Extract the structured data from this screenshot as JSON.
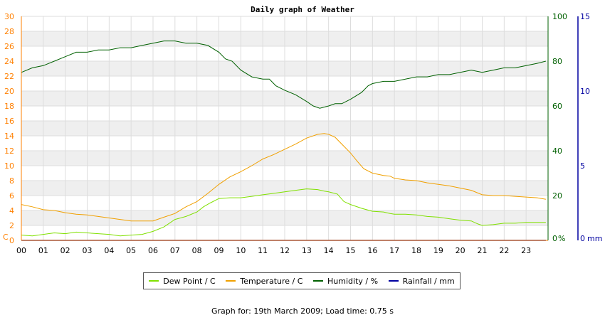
{
  "colors": {
    "dew_point": "#80e000",
    "temperature": "#f0a000",
    "humidity": "#006000",
    "rainfall": "#0000a0",
    "left_axis": "#ff8000",
    "humidity_axis": "#006000",
    "rainfall_axis": "#0000a0"
  },
  "chart_data": {
    "type": "line",
    "title": "Daily graph of Weather",
    "x": {
      "ticks": [
        "00",
        "01",
        "02",
        "03",
        "04",
        "05",
        "06",
        "07",
        "08",
        "09",
        "10",
        "11",
        "12",
        "13",
        "14",
        "15",
        "16",
        "17",
        "18",
        "19",
        "20",
        "21",
        "22",
        "23"
      ],
      "range": [
        0,
        24
      ]
    },
    "y_left": {
      "unit_label": "C",
      "range": [
        0,
        30
      ],
      "ticks": [
        0,
        2,
        4,
        6,
        8,
        10,
        12,
        14,
        16,
        18,
        20,
        22,
        24,
        26,
        28,
        30
      ]
    },
    "y_humidity": {
      "unit_label": "%",
      "range": [
        0,
        100
      ],
      "ticks": [
        0,
        20,
        40,
        60,
        80,
        100
      ]
    },
    "y_rainfall": {
      "unit_label": "mm",
      "range": [
        0,
        15
      ],
      "ticks": [
        0,
        5,
        10,
        15
      ]
    },
    "grid": true,
    "series": [
      {
        "name": "Dew Point / C",
        "axis": "left",
        "points": [
          [
            0,
            0.7
          ],
          [
            0.5,
            0.6
          ],
          [
            1,
            0.8
          ],
          [
            1.5,
            1.0
          ],
          [
            2,
            0.9
          ],
          [
            2.5,
            1.1
          ],
          [
            3,
            1.0
          ],
          [
            3.5,
            0.9
          ],
          [
            4,
            0.8
          ],
          [
            4.5,
            0.6
          ],
          [
            5,
            0.7
          ],
          [
            5.5,
            0.8
          ],
          [
            6,
            1.2
          ],
          [
            6.5,
            1.8
          ],
          [
            7,
            2.8
          ],
          [
            7.5,
            3.2
          ],
          [
            8,
            3.8
          ],
          [
            8.3,
            4.5
          ],
          [
            8.6,
            5.0
          ],
          [
            9,
            5.6
          ],
          [
            9.5,
            5.7
          ],
          [
            10,
            5.7
          ],
          [
            10.5,
            5.9
          ],
          [
            11,
            6.1
          ],
          [
            11.5,
            6.3
          ],
          [
            12,
            6.5
          ],
          [
            12.5,
            6.7
          ],
          [
            13,
            6.9
          ],
          [
            13.5,
            6.8
          ],
          [
            13.8,
            6.6
          ],
          [
            14,
            6.5
          ],
          [
            14.4,
            6.2
          ],
          [
            14.7,
            5.2
          ],
          [
            15,
            4.8
          ],
          [
            15.5,
            4.3
          ],
          [
            16,
            3.9
          ],
          [
            16.5,
            3.8
          ],
          [
            16.8,
            3.6
          ],
          [
            17,
            3.5
          ],
          [
            17.5,
            3.5
          ],
          [
            18,
            3.4
          ],
          [
            18.5,
            3.2
          ],
          [
            19,
            3.1
          ],
          [
            19.5,
            2.9
          ],
          [
            20,
            2.7
          ],
          [
            20.5,
            2.6
          ],
          [
            20.8,
            2.2
          ],
          [
            21,
            2.0
          ],
          [
            21.5,
            2.1
          ],
          [
            22,
            2.3
          ],
          [
            22.5,
            2.3
          ],
          [
            23,
            2.4
          ],
          [
            23.9,
            2.4
          ]
        ]
      },
      {
        "name": "Temperature / C",
        "axis": "left",
        "points": [
          [
            0,
            4.8
          ],
          [
            0.5,
            4.5
          ],
          [
            1,
            4.1
          ],
          [
            1.5,
            4.0
          ],
          [
            2,
            3.7
          ],
          [
            2.5,
            3.5
          ],
          [
            3,
            3.4
          ],
          [
            3.5,
            3.2
          ],
          [
            4,
            3.0
          ],
          [
            4.5,
            2.8
          ],
          [
            5,
            2.6
          ],
          [
            5.5,
            2.6
          ],
          [
            6,
            2.6
          ],
          [
            6.5,
            3.1
          ],
          [
            7,
            3.6
          ],
          [
            7.5,
            4.5
          ],
          [
            8,
            5.2
          ],
          [
            8.5,
            6.3
          ],
          [
            9,
            7.5
          ],
          [
            9.5,
            8.5
          ],
          [
            10,
            9.2
          ],
          [
            10.5,
            10.0
          ],
          [
            11,
            10.9
          ],
          [
            11.5,
            11.5
          ],
          [
            12,
            12.2
          ],
          [
            12.5,
            12.9
          ],
          [
            13,
            13.7
          ],
          [
            13.5,
            14.2
          ],
          [
            13.8,
            14.3
          ],
          [
            14,
            14.2
          ],
          [
            14.3,
            13.8
          ],
          [
            14.6,
            12.9
          ],
          [
            15,
            11.7
          ],
          [
            15.3,
            10.6
          ],
          [
            15.6,
            9.6
          ],
          [
            16,
            9.0
          ],
          [
            16.5,
            8.7
          ],
          [
            16.8,
            8.6
          ],
          [
            17,
            8.3
          ],
          [
            17.5,
            8.1
          ],
          [
            18,
            8.0
          ],
          [
            18.5,
            7.7
          ],
          [
            19,
            7.5
          ],
          [
            19.5,
            7.3
          ],
          [
            20,
            7.0
          ],
          [
            20.5,
            6.7
          ],
          [
            21,
            6.1
          ],
          [
            21.5,
            6.0
          ],
          [
            22,
            6.0
          ],
          [
            22.5,
            5.9
          ],
          [
            23,
            5.8
          ],
          [
            23.5,
            5.7
          ],
          [
            23.9,
            5.5
          ]
        ]
      },
      {
        "name": "Humidity / %",
        "axis": "humidity",
        "points": [
          [
            0,
            75
          ],
          [
            0.5,
            77
          ],
          [
            1,
            78
          ],
          [
            1.5,
            80
          ],
          [
            2,
            82
          ],
          [
            2.5,
            84
          ],
          [
            3,
            84
          ],
          [
            3.5,
            85
          ],
          [
            4,
            85
          ],
          [
            4.5,
            86
          ],
          [
            5,
            86
          ],
          [
            5.5,
            87
          ],
          [
            6,
            88
          ],
          [
            6.5,
            89
          ],
          [
            7,
            89
          ],
          [
            7.5,
            88
          ],
          [
            8,
            88
          ],
          [
            8.5,
            87
          ],
          [
            9,
            84
          ],
          [
            9.3,
            81
          ],
          [
            9.6,
            80
          ],
          [
            10,
            76
          ],
          [
            10.5,
            73
          ],
          [
            11,
            72
          ],
          [
            11.3,
            72
          ],
          [
            11.6,
            69
          ],
          [
            12,
            67
          ],
          [
            12.5,
            65
          ],
          [
            13,
            62
          ],
          [
            13.3,
            60
          ],
          [
            13.6,
            59
          ],
          [
            14,
            60
          ],
          [
            14.3,
            61
          ],
          [
            14.6,
            61
          ],
          [
            15,
            63
          ],
          [
            15.5,
            66
          ],
          [
            15.8,
            69
          ],
          [
            16,
            70
          ],
          [
            16.5,
            71
          ],
          [
            17,
            71
          ],
          [
            17.5,
            72
          ],
          [
            18,
            73
          ],
          [
            18.5,
            73
          ],
          [
            19,
            74
          ],
          [
            19.5,
            74
          ],
          [
            20,
            75
          ],
          [
            20.5,
            76
          ],
          [
            21,
            75
          ],
          [
            21.5,
            76
          ],
          [
            22,
            77
          ],
          [
            22.5,
            77
          ],
          [
            23,
            78
          ],
          [
            23.5,
            79
          ],
          [
            23.9,
            80
          ]
        ]
      },
      {
        "name": "Rainfall / mm",
        "axis": "rainfall",
        "points": [
          [
            0,
            0
          ],
          [
            23.9,
            0
          ]
        ]
      }
    ]
  },
  "footer": "Graph for: 19th March 2009; Load time: 0.75 s"
}
